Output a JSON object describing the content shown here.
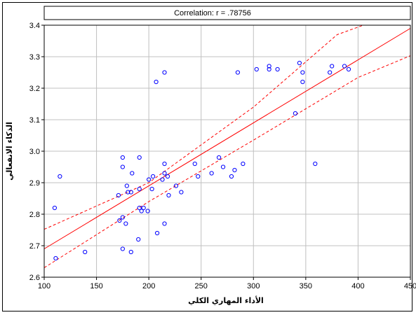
{
  "chart_data": {
    "type": "scatter",
    "title": "Correlation: r = .78756",
    "xlabel": "الأداء المهاري الكلي",
    "ylabel": "الذكاء الانفعالي",
    "xlim": [
      100,
      450
    ],
    "ylim": [
      2.6,
      3.4
    ],
    "x_ticks": [
      100,
      150,
      200,
      250,
      300,
      350,
      400,
      450
    ],
    "y_ticks": [
      2.6,
      2.7,
      2.8,
      2.9,
      3.0,
      3.1,
      3.2,
      3.3,
      3.4
    ],
    "x_tick_labels": [
      "100",
      "150",
      "200",
      "250",
      "300",
      "350",
      "400",
      "450"
    ],
    "y_tick_labels": [
      "2.6",
      "2.7",
      "2.8",
      "2.9",
      "3.0",
      "3.1",
      "3.2",
      "3.3",
      "3.4"
    ],
    "grid": true,
    "colors": {
      "points": "#0000ff",
      "fit_line": "#ff0000",
      "grid": "#c0c0c0",
      "background": "#ffffff"
    },
    "fit_line": {
      "style": "solid",
      "y_at_xmin": 2.69,
      "y_at_xmax": 3.39
    },
    "confidence_bands": {
      "style": "dashed",
      "upper": [
        [
          100,
          2.752
        ],
        [
          200,
          2.9
        ],
        [
          300,
          3.14
        ],
        [
          380,
          3.37
        ],
        [
          405,
          3.4
        ]
      ],
      "lower": [
        [
          100,
          2.63
        ],
        [
          200,
          2.84
        ],
        [
          300,
          3.035
        ],
        [
          400,
          3.234
        ],
        [
          450,
          3.303
        ]
      ]
    },
    "points": [
      [
        110,
        2.82
      ],
      [
        111,
        2.66
      ],
      [
        115,
        2.92
      ],
      [
        139,
        2.68
      ],
      [
        171,
        2.86
      ],
      [
        172,
        2.78
      ],
      [
        175,
        2.69
      ],
      [
        175,
        2.79
      ],
      [
        175,
        2.95
      ],
      [
        175,
        2.98
      ],
      [
        178,
        2.77
      ],
      [
        179,
        2.89
      ],
      [
        180,
        2.87
      ],
      [
        183,
        2.87
      ],
      [
        183,
        2.68
      ],
      [
        184,
        2.93
      ],
      [
        190,
        2.72
      ],
      [
        191,
        2.98
      ],
      [
        191,
        2.82
      ],
      [
        191,
        2.88
      ],
      [
        193,
        2.81
      ],
      [
        195,
        2.82
      ],
      [
        199,
        2.81
      ],
      [
        200,
        2.91
      ],
      [
        203,
        2.88
      ],
      [
        204,
        2.92
      ],
      [
        207,
        3.22
      ],
      [
        208,
        2.74
      ],
      [
        213,
        2.91
      ],
      [
        215,
        2.96
      ],
      [
        215,
        2.77
      ],
      [
        215,
        2.93
      ],
      [
        215,
        3.25
      ],
      [
        218,
        2.92
      ],
      [
        219,
        2.86
      ],
      [
        226,
        2.89
      ],
      [
        231,
        2.87
      ],
      [
        244,
        2.96
      ],
      [
        247,
        2.92
      ],
      [
        260,
        2.93
      ],
      [
        267,
        2.98
      ],
      [
        271,
        2.95
      ],
      [
        279,
        2.92
      ],
      [
        282,
        2.94
      ],
      [
        285,
        3.25
      ],
      [
        290,
        2.96
      ],
      [
        303,
        3.26
      ],
      [
        315,
        3.27
      ],
      [
        315,
        3.26
      ],
      [
        323,
        3.26
      ],
      [
        340,
        3.12
      ],
      [
        344,
        3.28
      ],
      [
        347,
        3.25
      ],
      [
        347,
        3.22
      ],
      [
        359,
        2.96
      ],
      [
        373,
        3.25
      ],
      [
        375,
        3.27
      ],
      [
        387,
        3.27
      ],
      [
        391,
        3.26
      ]
    ]
  }
}
